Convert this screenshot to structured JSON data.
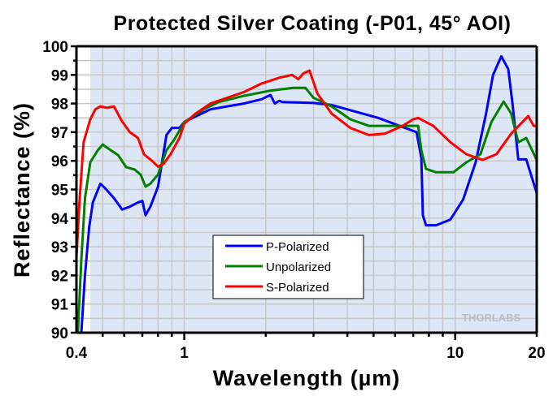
{
  "chart_data": {
    "type": "line",
    "title": "Protected Silver Coating (-P01, 45° AOI)",
    "xlabel": "Wavelength (µm)",
    "ylabel": "Reflectance (%)",
    "xscale": "log",
    "xlim": [
      0.4,
      20
    ],
    "ylim": [
      90,
      100
    ],
    "xticks": [
      0.4,
      1,
      10,
      20
    ],
    "xtick_labels": [
      "0.4",
      "1",
      "10",
      "20"
    ],
    "yticks": [
      90,
      91,
      92,
      93,
      94,
      95,
      96,
      97,
      98,
      99,
      100
    ],
    "ytick_labels": [
      "90",
      "91",
      "92",
      "93",
      "94",
      "95",
      "96",
      "97",
      "98",
      "99",
      "100"
    ],
    "grid": true,
    "shaded_region": [
      0.45,
      20
    ],
    "legend_position": "lower-center",
    "watermark": "THORLABS",
    "series": [
      {
        "name": "P-Polarized",
        "color": "#0000ff",
        "x": [
          0.417,
          0.43,
          0.446,
          0.46,
          0.49,
          0.51,
          0.55,
          0.59,
          0.63,
          0.675,
          0.7,
          0.72,
          0.75,
          0.8,
          0.86,
          0.9,
          0.96,
          1.0,
          1.1,
          1.25,
          1.44,
          1.66,
          1.93,
          2.08,
          2.16,
          2.24,
          2.3,
          3.0,
          3.5,
          5.2,
          7.2,
          7.5,
          7.6,
          7.8,
          8.5,
          9.6,
          10.7,
          11.9,
          13.0,
          13.8,
          14.8,
          15.7,
          16.3,
          17.1,
          18.3,
          20
        ],
        "values": [
          90.0,
          92.0,
          93.7,
          94.55,
          95.2,
          95.05,
          94.7,
          94.3,
          94.4,
          94.55,
          94.6,
          94.1,
          94.4,
          95.1,
          96.9,
          97.15,
          97.15,
          97.35,
          97.55,
          97.8,
          97.9,
          98.0,
          98.15,
          98.3,
          98.0,
          98.1,
          98.05,
          98.02,
          97.95,
          97.5,
          97.0,
          96.1,
          94.1,
          93.75,
          93.75,
          93.95,
          94.65,
          95.95,
          97.65,
          99.0,
          99.65,
          99.2,
          97.95,
          96.05,
          96.05,
          94.87
        ]
      },
      {
        "name": "Unpolarized",
        "color": "#008000",
        "x": [
          0.405,
          0.417,
          0.43,
          0.45,
          0.48,
          0.5,
          0.53,
          0.57,
          0.61,
          0.655,
          0.69,
          0.72,
          0.75,
          0.8,
          0.86,
          0.92,
          1.0,
          1.18,
          1.34,
          1.66,
          2.08,
          2.52,
          2.8,
          3.0,
          3.5,
          4.1,
          4.8,
          5.5,
          6.9,
          7.3,
          7.5,
          7.8,
          8.5,
          9.85,
          11.0,
          12.4,
          13.6,
          15.1,
          16.1,
          17.1,
          18.3,
          20
        ],
        "values": [
          90.0,
          92.55,
          94.7,
          95.95,
          96.37,
          96.57,
          96.4,
          96.2,
          95.78,
          95.7,
          95.52,
          95.1,
          95.2,
          95.52,
          96.37,
          96.75,
          97.35,
          97.8,
          98.05,
          98.27,
          98.45,
          98.55,
          98.55,
          98.2,
          97.9,
          97.45,
          97.22,
          97.22,
          97.22,
          97.22,
          96.37,
          95.72,
          95.6,
          95.6,
          95.95,
          96.23,
          97.35,
          98.07,
          97.65,
          96.65,
          96.8,
          96.03
        ]
      },
      {
        "name": "S-Polarized",
        "color": "#ff0000",
        "x": [
          0.4,
          0.41,
          0.425,
          0.45,
          0.47,
          0.49,
          0.52,
          0.55,
          0.59,
          0.63,
          0.675,
          0.71,
          0.76,
          0.8,
          0.84,
          0.89,
          0.96,
          1.0,
          1.1,
          1.25,
          1.44,
          1.66,
          1.93,
          2.24,
          2.5,
          2.64,
          2.75,
          2.9,
          3.1,
          3.5,
          4.1,
          4.8,
          5.5,
          6.4,
          7.0,
          7.3,
          8.3,
          9.6,
          11.0,
          12.6,
          14.2,
          16.1,
          18.6,
          19.5,
          20
        ],
        "values": [
          92.6,
          94.53,
          96.65,
          97.45,
          97.8,
          97.9,
          97.85,
          97.9,
          97.37,
          97.0,
          96.8,
          96.23,
          96.0,
          95.8,
          95.9,
          96.23,
          96.8,
          97.3,
          97.65,
          98.0,
          98.2,
          98.4,
          98.7,
          98.9,
          99.0,
          98.85,
          99.05,
          99.15,
          98.35,
          97.65,
          97.15,
          96.9,
          96.95,
          97.22,
          97.45,
          97.5,
          97.22,
          96.65,
          96.23,
          96.03,
          96.23,
          96.95,
          97.56,
          97.22,
          97.22
        ]
      }
    ]
  }
}
